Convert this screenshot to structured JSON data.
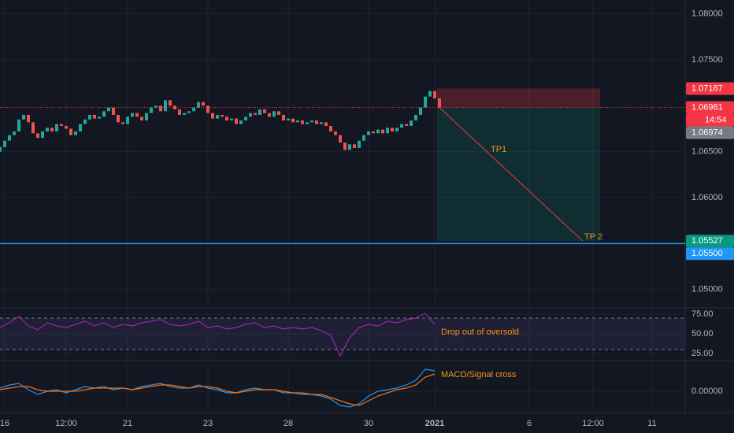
{
  "chart_data": [
    {
      "type": "candlestick",
      "x": [
        0,
        1,
        2,
        3,
        4,
        5,
        6,
        7,
        8,
        9,
        10,
        11,
        12,
        13,
        14,
        15,
        16,
        17,
        18,
        19,
        20,
        21,
        22,
        23,
        24,
        25,
        26,
        27,
        28,
        29,
        30,
        31,
        32,
        33,
        34,
        35,
        36,
        37,
        38,
        39,
        40,
        41,
        42,
        43,
        44,
        45,
        46,
        47,
        48,
        49,
        50,
        51,
        52,
        53,
        54,
        55,
        56,
        57,
        58,
        59,
        60,
        61,
        62,
        63,
        64,
        65,
        66,
        67,
        68,
        69,
        70,
        71,
        72,
        73,
        74,
        75,
        76,
        77,
        78,
        79,
        80,
        81,
        82,
        83,
        84,
        85,
        86,
        87,
        88,
        89,
        90,
        91,
        92,
        93
      ],
      "open": [
        1.065,
        1.0655,
        1.0662,
        1.0668,
        1.0672,
        1.0685,
        1.069,
        1.0682,
        1.067,
        1.0665,
        1.0672,
        1.0676,
        1.0672,
        1.068,
        1.0678,
        1.0675,
        1.0668,
        1.0672,
        1.068,
        1.0685,
        1.069,
        1.0686,
        1.0688,
        1.0694,
        1.0698,
        1.069,
        1.0682,
        1.068,
        1.0688,
        1.0692,
        1.0688,
        1.0684,
        1.0692,
        1.0698,
        1.07,
        1.0694,
        1.0706,
        1.07,
        1.0696,
        1.069,
        1.0692,
        1.0694,
        1.0698,
        1.0704,
        1.07,
        1.0692,
        1.0686,
        1.069,
        1.0688,
        1.0684,
        1.0686,
        1.068,
        1.0684,
        1.0688,
        1.0692,
        1.069,
        1.0696,
        1.0692,
        1.0688,
        1.0694,
        1.069,
        1.0684,
        1.0686,
        1.0682,
        1.0684,
        1.068,
        1.0682,
        1.0684,
        1.068,
        1.0682,
        1.0678,
        1.0672,
        1.0668,
        1.066,
        1.0652,
        1.0658,
        1.0654,
        1.0662,
        1.0668,
        1.0672,
        1.067,
        1.0674,
        1.067,
        1.0676,
        1.0672,
        1.0676,
        1.068,
        1.0678,
        1.0684,
        1.069,
        1.0698,
        1.071,
        1.0716,
        1.0708
      ],
      "close": [
        1.0655,
        1.0662,
        1.0668,
        1.0672,
        1.0685,
        1.069,
        1.0682,
        1.067,
        1.0665,
        1.0672,
        1.0676,
        1.0672,
        1.068,
        1.0678,
        1.0675,
        1.0668,
        1.0672,
        1.068,
        1.0685,
        1.069,
        1.0686,
        1.0688,
        1.0694,
        1.0698,
        1.069,
        1.0682,
        1.068,
        1.0688,
        1.0692,
        1.0688,
        1.0684,
        1.0692,
        1.0698,
        1.07,
        1.0694,
        1.0706,
        1.07,
        1.0696,
        1.069,
        1.0692,
        1.0694,
        1.0698,
        1.0704,
        1.07,
        1.0692,
        1.0686,
        1.069,
        1.0688,
        1.0684,
        1.0686,
        1.068,
        1.0684,
        1.0688,
        1.0692,
        1.069,
        1.0696,
        1.0692,
        1.0688,
        1.0694,
        1.069,
        1.0684,
        1.0686,
        1.0682,
        1.0684,
        1.068,
        1.0682,
        1.0684,
        1.068,
        1.0682,
        1.0678,
        1.0672,
        1.0668,
        1.066,
        1.0652,
        1.0658,
        1.0654,
        1.0662,
        1.0668,
        1.0672,
        1.067,
        1.0674,
        1.067,
        1.0676,
        1.0672,
        1.0676,
        1.068,
        1.0678,
        1.0684,
        1.069,
        1.0698,
        1.071,
        1.0716,
        1.0708,
        1.0698
      ],
      "up_color": "#26a69a",
      "down_color": "#ef5350",
      "xlim": [
        0,
        145
      ],
      "ylim": [
        1.0481,
        1.0815
      ],
      "yticks": [
        {
          "value": 1.08,
          "label": "1.08000"
        },
        {
          "value": 1.075,
          "label": "1.07500"
        },
        {
          "value": 1.065,
          "label": "1.06500"
        },
        {
          "value": 1.06,
          "label": "1.06000"
        },
        {
          "value": 1.05,
          "label": "1.05000"
        }
      ],
      "price_labels": [
        {
          "value": 1.07187,
          "color": "#f23645"
        },
        {
          "value": 1.06981,
          "color": "#f23645"
        },
        {
          "value": 1.06974,
          "color": "#787b86"
        },
        {
          "value": 1.05527,
          "color": "#089981"
        },
        {
          "value": 1.055,
          "label": "1.05500",
          "color": "#2196f3"
        }
      ],
      "countdown": "14:54",
      "annotations": [
        "TP1",
        "TP 2"
      ]
    },
    {
      "type": "line",
      "x": [
        0,
        2,
        4,
        6,
        8,
        10,
        12,
        14,
        16,
        18,
        20,
        22,
        24,
        26,
        28,
        30,
        32,
        34,
        36,
        38,
        40,
        42,
        44,
        46,
        48,
        50,
        52,
        54,
        56,
        58,
        60,
        62,
        64,
        66,
        68,
        70,
        72,
        74,
        76,
        78,
        80,
        82,
        84,
        86,
        88,
        90,
        92
      ],
      "series": [
        {
          "color": "#9c27b0",
          "values": [
            58,
            64,
            72,
            60,
            55,
            64,
            60,
            58,
            62,
            66,
            60,
            64,
            58,
            62,
            60,
            64,
            66,
            68,
            62,
            60,
            62,
            66,
            58,
            60,
            56,
            58,
            62,
            64,
            58,
            60,
            56,
            58,
            56,
            58,
            54,
            48,
            22,
            45,
            58,
            62,
            60,
            66,
            64,
            68,
            70,
            76,
            62
          ]
        }
      ],
      "band": [
        30,
        70
      ],
      "xlim": [
        0,
        145
      ],
      "ylim": [
        18,
        82
      ],
      "yticks": [
        {
          "value": 75,
          "label": "75.00"
        },
        {
          "value": 50,
          "label": "50.00"
        },
        {
          "value": 25,
          "label": "25.00"
        }
      ],
      "annotation": "Drop out of oversold"
    },
    {
      "type": "line",
      "x": [
        0,
        2,
        4,
        6,
        8,
        10,
        12,
        14,
        16,
        18,
        20,
        22,
        24,
        26,
        28,
        30,
        32,
        34,
        36,
        38,
        40,
        42,
        44,
        46,
        48,
        50,
        52,
        54,
        56,
        58,
        60,
        62,
        64,
        66,
        68,
        70,
        72,
        74,
        76,
        78,
        80,
        82,
        84,
        86,
        88,
        90,
        92
      ],
      "series": [
        {
          "color": "#2196f3",
          "values": [
            0.0002,
            0.0004,
            0.0005,
            0.0001,
            -0.0002,
            0.0,
            0.0001,
            -0.0001,
            0.0001,
            0.0003,
            0.0002,
            0.0003,
            0.0001,
            0.0002,
            0.0001,
            0.0003,
            0.0004,
            0.0005,
            0.0003,
            0.0002,
            0.0002,
            0.0004,
            0.0002,
            0.0001,
            -0.0001,
            -0.0001,
            0.0001,
            0.0002,
            0.0001,
            0.0001,
            -0.0001,
            -0.0001,
            -0.0002,
            -0.0002,
            -0.0003,
            -0.0005,
            -0.0009,
            -0.001,
            -0.0008,
            -0.0003,
            0.0,
            0.0001,
            0.0002,
            0.0004,
            0.0007,
            0.0014,
            0.0013
          ]
        },
        {
          "color": "#ff6d00",
          "values": [
            0.0001,
            0.0002,
            0.0003,
            0.0003,
            0.0001,
            0.0,
            0.0,
            0.0,
            0.0,
            0.0001,
            0.0002,
            0.0002,
            0.0002,
            0.0002,
            0.0001,
            0.0002,
            0.0003,
            0.0004,
            0.0004,
            0.0003,
            0.0002,
            0.0003,
            0.0003,
            0.0002,
            0.0,
            -0.0001,
            0.0,
            0.0001,
            0.0001,
            0.0001,
            0.0,
            -0.0001,
            -0.0001,
            -0.0002,
            -0.0002,
            -0.0004,
            -0.0006,
            -0.0008,
            -0.0009,
            -0.0006,
            -0.0003,
            -0.0001,
            0.0001,
            0.0002,
            0.0004,
            0.0009,
            0.0011
          ]
        }
      ],
      "xlim": [
        0,
        145
      ],
      "ylim": [
        -0.00125,
        0.00185
      ],
      "yticks": [
        {
          "value": 0,
          "label": "0.00000"
        }
      ],
      "xticks": [
        {
          "value": 1,
          "label": "16"
        },
        {
          "value": 14,
          "label": "12:00"
        },
        {
          "value": 27,
          "label": "21"
        },
        {
          "value": 44,
          "label": "23"
        },
        {
          "value": 61,
          "label": "28"
        },
        {
          "value": 78,
          "label": "30"
        },
        {
          "value": 92,
          "label": "2021"
        },
        {
          "value": 112,
          "label": "6"
        },
        {
          "value": 125.5,
          "label": "12:00"
        },
        {
          "value": 138,
          "label": "11"
        }
      ],
      "annotation": "MACD/Signal cross"
    }
  ]
}
